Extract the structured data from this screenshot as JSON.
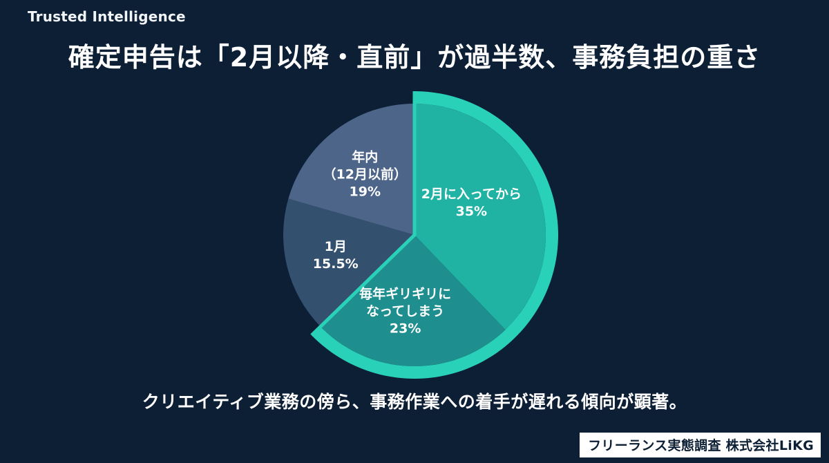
{
  "brand": "Trusted Intelligence",
  "title": "確定申告は「2月以降・直前」が過半数、事務負担の重さ",
  "caption": "クリエイティブ業務の傍ら、事務作業への着手が遅れる傾向が顕著。",
  "source": "フリーランス実態調査 株式会社LiKG",
  "colors": {
    "background": "#0c1f35",
    "accent": "#2ad1b9",
    "slice_feb": "#20b3a3",
    "slice_lastminute": "#1e8f8e",
    "slice_jan": "#33506f",
    "slice_dec": "#4c6589"
  },
  "chart_data": {
    "type": "pie",
    "start_angle_deg": 0,
    "direction": "clockwise",
    "slices": [
      {
        "key": "feb",
        "label_lines": [
          "2月に入ってから",
          "35%"
        ],
        "value": 35,
        "highlight": true
      },
      {
        "key": "lastminute",
        "label_lines": [
          "毎年ギリギリに",
          "なってしまう",
          "23%"
        ],
        "value": 23,
        "highlight": true
      },
      {
        "key": "jan",
        "label_lines": [
          "1月",
          "15.5%"
        ],
        "value": 15.5,
        "highlight": false
      },
      {
        "key": "dec",
        "label_lines": [
          "年内",
          "（12月以前）",
          "19%"
        ],
        "value": 19,
        "highlight": false
      }
    ]
  }
}
